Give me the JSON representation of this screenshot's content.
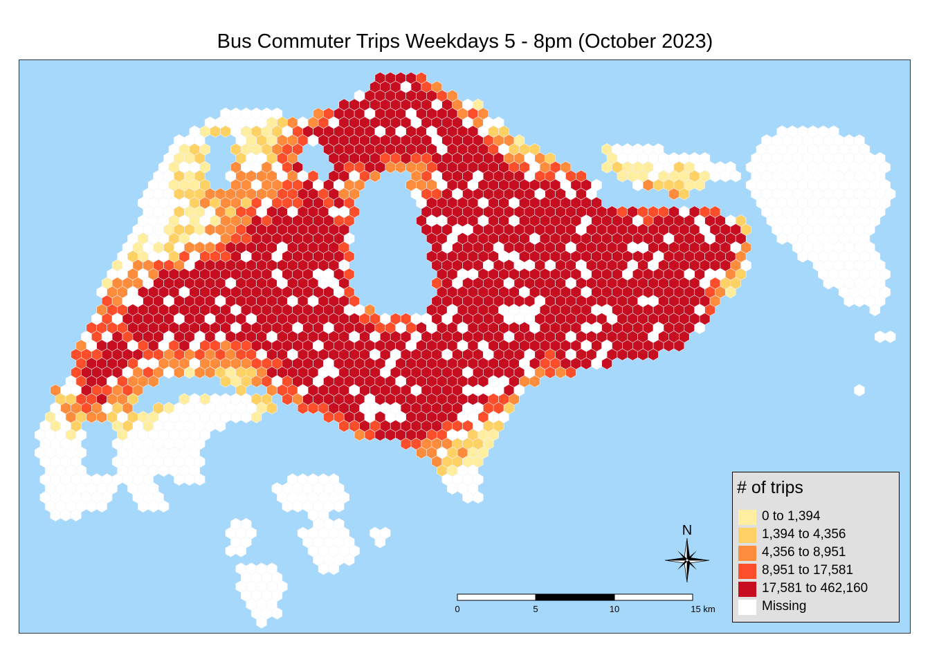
{
  "title": "Bus Commuter Trips Weekdays 5 - 8pm (October 2023)",
  "colors": {
    "sea": "#a5d8fb",
    "missing": "#ffffff",
    "hex_outline": "#eef4fa",
    "classes": [
      "#ffeda0",
      "#fed165",
      "#fd8d3c",
      "#fc4e2a",
      "#c70d20"
    ]
  },
  "legend": {
    "title": "# of trips",
    "items": [
      {
        "label": "0 to 1,394",
        "color": "#ffeda0"
      },
      {
        "label": "1,394 to 4,356",
        "color": "#fed165"
      },
      {
        "label": "4,356 to 8,951",
        "color": "#fd8d3c"
      },
      {
        "label": "8,951 to 17,581",
        "color": "#fc4e2a"
      },
      {
        "label": "17,581 to 462,160",
        "color": "#c70d20"
      },
      {
        "label": "Missing",
        "color": "#ffffff"
      }
    ]
  },
  "compass": {
    "letter": "N",
    "icon": "north-arrow-compass-icon"
  },
  "scale_bar": {
    "ticks": [
      "0",
      "5",
      "10",
      "15 km"
    ],
    "segments": [
      "#ffffff",
      "#000000",
      "#ffffff"
    ]
  }
}
